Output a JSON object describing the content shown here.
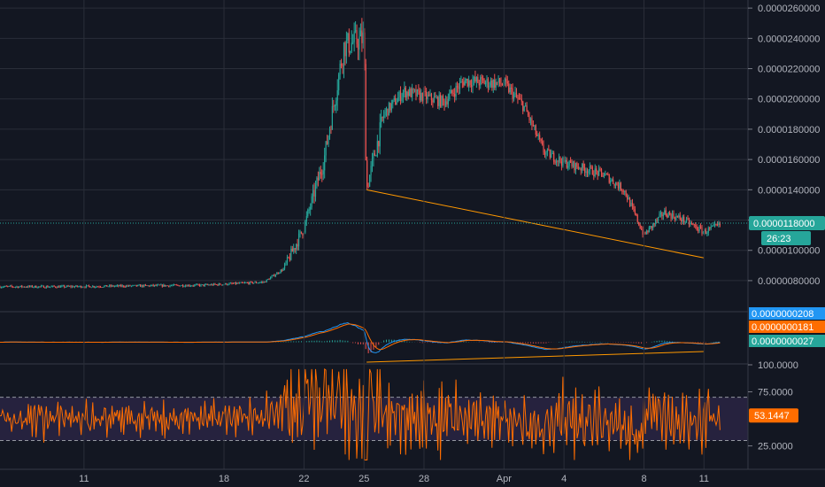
{
  "colors": {
    "background": "#131722",
    "grid": "#2a2e39",
    "axis_text": "#b2b5be",
    "candle_up": "#26a69a",
    "candle_down": "#ef5350",
    "price_badge": "#26a69a",
    "macd_line": "#2196f3",
    "signal_line": "#ff6d00",
    "rsi_line": "#ff6d00",
    "rsi_band": "#7e57c2",
    "trendline": "#ff9800"
  },
  "chart_data": [
    {
      "type": "candlestick",
      "pane": "price",
      "y_ticks": [
        "0.0000260000",
        "0.0000240000",
        "0.0000220000",
        "0.0000200000",
        "0.0000180000",
        "0.0000160000",
        "0.0000140000",
        "0.0000120000",
        "0.0000100000",
        "0.0000080000"
      ],
      "ylim": [
        6.3e-06,
        2.63e-05
      ],
      "x_ticks": [
        "11",
        "18",
        "22",
        "25",
        "28",
        "Apr",
        "4",
        "8",
        "11"
      ],
      "last_price": "0.0000118000",
      "countdown": "26:23",
      "trend_anchor_points": [
        {
          "x": "Mar 10",
          "y": 7.6e-06
        },
        {
          "x": "Mar 17",
          "y": 7.7e-06
        },
        {
          "x": "Mar 20",
          "y": 7.9e-06
        },
        {
          "x": "Mar 21",
          "y": 8.8e-06
        },
        {
          "x": "Mar 22",
          "y": 1.15e-05
        },
        {
          "x": "Mar 23",
          "y": 1.6e-05
        },
        {
          "x": "Mar 24",
          "y": 2.35e-05
        },
        {
          "x": "Mar 25",
          "y": 2.4e-05
        },
        {
          "x": "Mar 25",
          "y": 1.4e-05
        },
        {
          "x": "Mar 26",
          "y": 1.9e-05
        },
        {
          "x": "Mar 27",
          "y": 2.05e-05
        },
        {
          "x": "Mar 29",
          "y": 1.98e-05
        },
        {
          "x": "Mar 30",
          "y": 2.12e-05
        },
        {
          "x": "Apr 1",
          "y": 2.1e-05
        },
        {
          "x": "Apr 2",
          "y": 1.95e-05
        },
        {
          "x": "Apr 3",
          "y": 1.65e-05
        },
        {
          "x": "Apr 4",
          "y": 1.58e-05
        },
        {
          "x": "Apr 6",
          "y": 1.5e-05
        },
        {
          "x": "Apr 7",
          "y": 1.4e-05
        },
        {
          "x": "Apr 8",
          "y": 1.1e-05
        },
        {
          "x": "Apr 9",
          "y": 1.25e-05
        },
        {
          "x": "Apr 10",
          "y": 1.2e-05
        },
        {
          "x": "Apr 11",
          "y": 1.12e-05
        },
        {
          "x": "Apr 12",
          "y": 1.18e-05
        }
      ],
      "drawn_trendline": [
        {
          "x": "Mar 25",
          "y": 1.4e-05
        },
        {
          "x": "Apr 11",
          "y": 9.5e-06
        }
      ]
    },
    {
      "type": "line",
      "pane": "macd",
      "values": {
        "macd": "0.0000000208",
        "signal": "0.0000000181",
        "histogram": "0.0000000027"
      }
    },
    {
      "type": "line",
      "pane": "rsi",
      "y_ticks": [
        "100.0000",
        "75.0000",
        "25.0000"
      ],
      "ylim": [
        5,
        100
      ],
      "upper_band": 70,
      "lower_band": 30,
      "last_value": "53.1447"
    }
  ]
}
